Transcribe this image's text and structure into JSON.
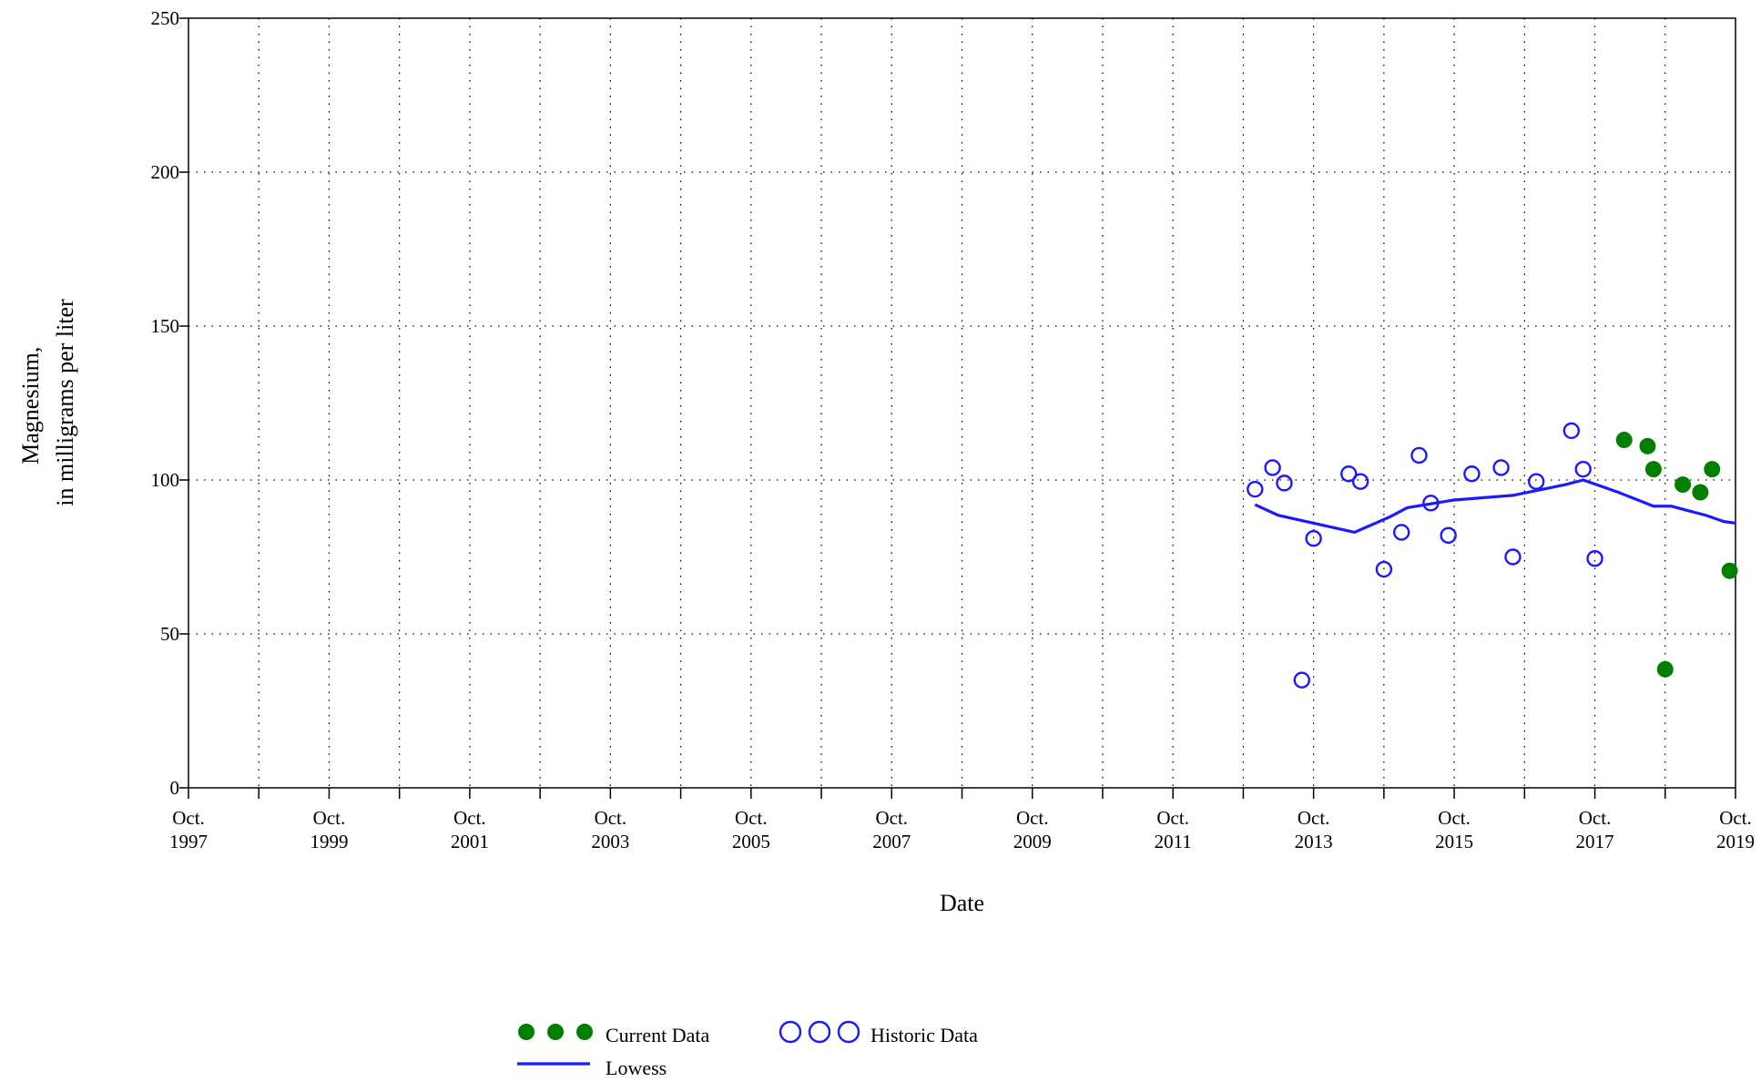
{
  "chart_data": {
    "type": "scatter",
    "title": "",
    "xlabel": "Date",
    "ylabel": [
      "Magnesium,",
      "in milligrams per liter"
    ],
    "xlim": [
      "1997-10",
      "2019-10"
    ],
    "ylim": [
      0,
      250
    ],
    "grid": true,
    "x_ticks": [
      {
        "date": "1997-10",
        "label": [
          "Oct.",
          "1997"
        ]
      },
      {
        "date": "1999-10",
        "label": [
          "Oct.",
          "1999"
        ]
      },
      {
        "date": "2001-10",
        "label": [
          "Oct.",
          "2001"
        ]
      },
      {
        "date": "2003-10",
        "label": [
          "Oct.",
          "2003"
        ]
      },
      {
        "date": "2005-10",
        "label": [
          "Oct.",
          "2005"
        ]
      },
      {
        "date": "2007-10",
        "label": [
          "Oct.",
          "2007"
        ]
      },
      {
        "date": "2009-10",
        "label": [
          "Oct.",
          "2009"
        ]
      },
      {
        "date": "2011-10",
        "label": [
          "Oct.",
          "2011"
        ]
      },
      {
        "date": "2013-10",
        "label": [
          "Oct.",
          "2013"
        ]
      },
      {
        "date": "2015-10",
        "label": [
          "Oct.",
          "2015"
        ]
      },
      {
        "date": "2017-10",
        "label": [
          "Oct.",
          "2017"
        ]
      },
      {
        "date": "2019-10",
        "label": [
          "Oct.",
          "2019"
        ]
      }
    ],
    "y_ticks": [
      0,
      50,
      100,
      150,
      200,
      250
    ],
    "series": [
      {
        "name": "Historic Data",
        "style": "open-circle",
        "color": "#1a1aff",
        "points": [
          {
            "x": "2012-12",
            "y": 97
          },
          {
            "x": "2013-03",
            "y": 104
          },
          {
            "x": "2013-05",
            "y": 99
          },
          {
            "x": "2013-08",
            "y": 35
          },
          {
            "x": "2013-10",
            "y": 81
          },
          {
            "x": "2014-04",
            "y": 102
          },
          {
            "x": "2014-06",
            "y": 99.5
          },
          {
            "x": "2014-10",
            "y": 71
          },
          {
            "x": "2015-01",
            "y": 83
          },
          {
            "x": "2015-04",
            "y": 108
          },
          {
            "x": "2015-06",
            "y": 92.5
          },
          {
            "x": "2015-09",
            "y": 82
          },
          {
            "x": "2016-01",
            "y": 102
          },
          {
            "x": "2016-06",
            "y": 104
          },
          {
            "x": "2016-08",
            "y": 75
          },
          {
            "x": "2016-12",
            "y": 99.5
          },
          {
            "x": "2017-06",
            "y": 116
          },
          {
            "x": "2017-08",
            "y": 103.5
          },
          {
            "x": "2017-10",
            "y": 74.5
          }
        ]
      },
      {
        "name": "Current Data",
        "style": "filled-circle",
        "color": "#007f00",
        "points": [
          {
            "x": "2018-03",
            "y": 113
          },
          {
            "x": "2018-07",
            "y": 111
          },
          {
            "x": "2018-08",
            "y": 103.5
          },
          {
            "x": "2018-10",
            "y": 38.5
          },
          {
            "x": "2019-01",
            "y": 98.5
          },
          {
            "x": "2019-04",
            "y": 96
          },
          {
            "x": "2019-06",
            "y": 103.5
          },
          {
            "x": "2019-09",
            "y": 70.5
          }
        ]
      },
      {
        "name": "Lowess",
        "style": "line",
        "color": "#1a1aff",
        "points": [
          {
            "x": "2012-12",
            "y": 92
          },
          {
            "x": "2013-04",
            "y": 88.5
          },
          {
            "x": "2014-05",
            "y": 83
          },
          {
            "x": "2014-11",
            "y": 88
          },
          {
            "x": "2015-02",
            "y": 91
          },
          {
            "x": "2015-10",
            "y": 93.5
          },
          {
            "x": "2016-08",
            "y": 95
          },
          {
            "x": "2017-05",
            "y": 98.5
          },
          {
            "x": "2017-08",
            "y": 100
          },
          {
            "x": "2018-02",
            "y": 96
          },
          {
            "x": "2018-08",
            "y": 91.5
          },
          {
            "x": "2018-11",
            "y": 91.5
          },
          {
            "x": "2019-02",
            "y": 90
          },
          {
            "x": "2019-05",
            "y": 88.5
          },
          {
            "x": "2019-08",
            "y": 86.5
          },
          {
            "x": "2019-10",
            "y": 86
          }
        ]
      }
    ],
    "legend": {
      "placement": "bottom",
      "items": [
        {
          "name": "Current Data",
          "symbol": "filled-circle"
        },
        {
          "name": "Historic Data",
          "symbol": "open-circle"
        },
        {
          "name": "Lowess",
          "symbol": "line"
        }
      ]
    }
  }
}
